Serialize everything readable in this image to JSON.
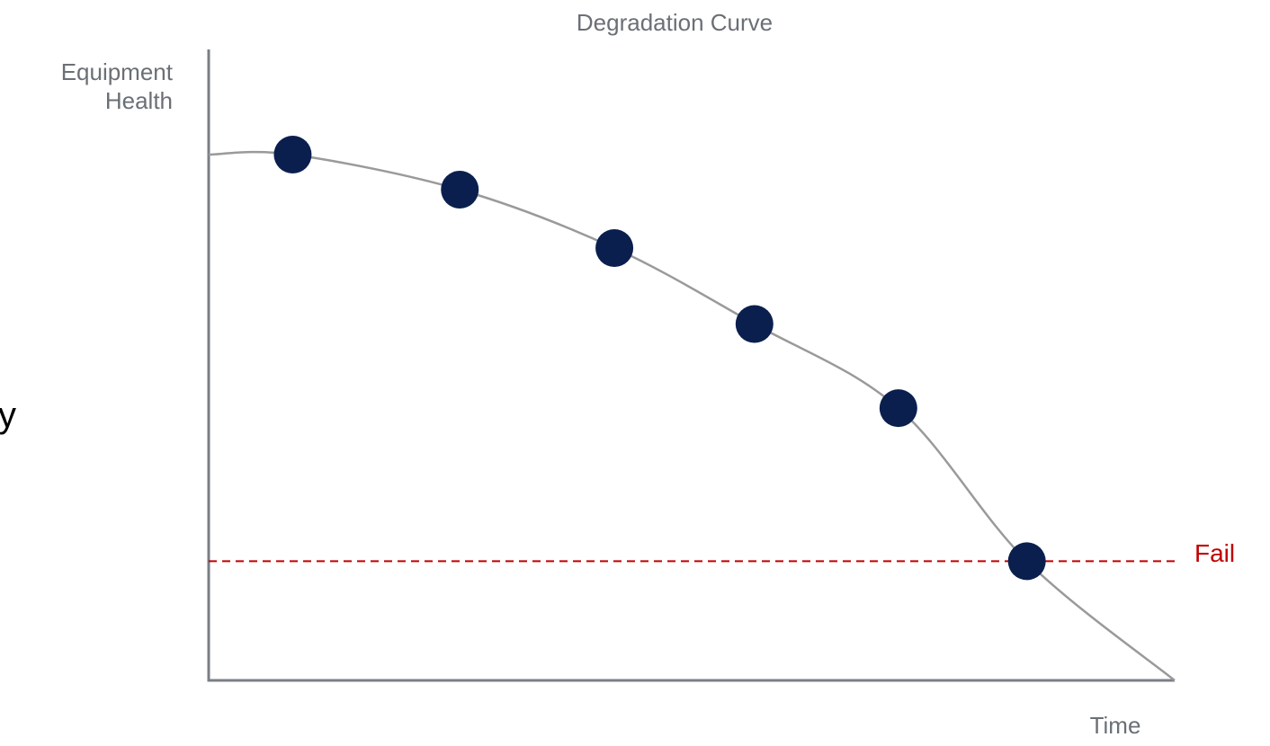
{
  "chart_data": {
    "type": "scatter",
    "title": "Degradation Curve",
    "ylabel_lines": [
      "Equipment",
      "Health"
    ],
    "xlabel": "Time",
    "axis_ticks": false,
    "grid": false,
    "xlim": [
      0,
      10
    ],
    "ylim": [
      0,
      10
    ],
    "series": [
      {
        "values": [
          {
            "x": 0.87,
            "y": 9.0
          },
          {
            "x": 2.6,
            "y": 8.4
          },
          {
            "x": 4.2,
            "y": 7.4
          },
          {
            "x": 5.65,
            "y": 6.1
          },
          {
            "x": 7.14,
            "y": 4.66
          },
          {
            "x": 8.47,
            "y": 2.04
          }
        ]
      }
    ],
    "trend_curve": {
      "style": "smooth",
      "points": [
        {
          "x": 0.0,
          "y": 9.0
        },
        {
          "x": 0.87,
          "y": 9.0
        },
        {
          "x": 2.6,
          "y": 8.4
        },
        {
          "x": 4.2,
          "y": 7.4
        },
        {
          "x": 5.65,
          "y": 6.1
        },
        {
          "x": 7.14,
          "y": 4.66
        },
        {
          "x": 8.47,
          "y": 2.04
        },
        {
          "x": 10.0,
          "y": 0.0
        }
      ]
    },
    "threshold": {
      "y": 2.04,
      "label": "Fail"
    },
    "colors": {
      "point": "#0a1f4e",
      "curve": "#9a9a9a",
      "axis": "#7a7e85",
      "threshold": "#c00000",
      "text": "#6b6f76"
    }
  },
  "page": {
    "clipped_glyph": "y"
  }
}
